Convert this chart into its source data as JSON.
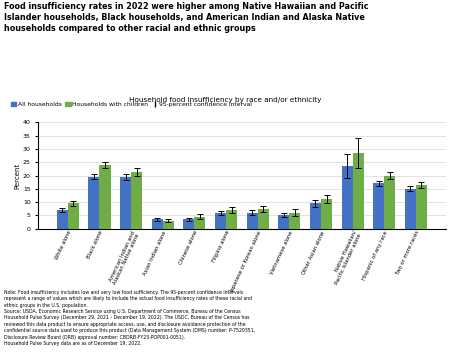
{
  "title_bold": "Food insufficiency rates in 2022 were higher among Native Hawaiian and Pacific\nIslander households, Black households, and American Indian and Alaska Native\nhouseholds compared to other racial and ethnic groups",
  "subtitle": "Household food insufficiency by race and/or ethnicity",
  "ylabel": "Percent",
  "ylim": [
    0,
    40
  ],
  "yticks": [
    0,
    5,
    10,
    15,
    20,
    25,
    30,
    35,
    40
  ],
  "categories": [
    "White alone",
    "Black alone",
    "American Indian and\nAlaskan Native alone",
    "Asian Indian alone",
    "Chinese alone",
    "Filipino alone",
    "Japanese or Korean alone",
    "Vietnamese alone",
    "Other Asian alone",
    "Native Hawaiian/\nPacific Islander alone",
    "Hispanic of any race",
    "Two or more races"
  ],
  "all_households": [
    7.0,
    19.5,
    19.5,
    3.5,
    3.5,
    6.0,
    6.0,
    5.0,
    9.5,
    23.5,
    17.0,
    15.0
  ],
  "with_children": [
    9.5,
    24.0,
    21.5,
    3.0,
    4.5,
    7.0,
    7.5,
    6.0,
    11.0,
    28.5,
    20.0,
    16.5
  ],
  "all_err_low": [
    0.8,
    1.0,
    1.2,
    0.5,
    0.6,
    0.8,
    0.9,
    0.8,
    1.2,
    4.5,
    1.0,
    1.0
  ],
  "all_err_high": [
    0.8,
    1.0,
    1.2,
    0.5,
    0.6,
    0.8,
    0.9,
    0.8,
    1.2,
    4.5,
    1.0,
    1.0
  ],
  "child_err_low": [
    0.9,
    1.2,
    1.5,
    0.6,
    1.0,
    1.0,
    1.2,
    1.2,
    1.5,
    5.5,
    1.2,
    1.2
  ],
  "child_err_high": [
    0.9,
    1.2,
    1.5,
    0.6,
    1.0,
    1.0,
    1.2,
    1.2,
    1.5,
    5.5,
    1.2,
    1.2
  ],
  "color_all": "#4472C4",
  "color_children": "#70AD47",
  "bar_width": 0.35,
  "note": "Note: Food insufficiency includes low and very low food sufficiency. The 95-percent confidence intervals\nrepresent a range of values which are likely to include the actual food insufficiency rates of these racial and\nethnic groups in the U.S. population.\nSource: USDA, Economic Research Service using U.S. Department of Commerce, Bureau of the Census\nHousehold Pulse Survey (December 29, 2021 - December 19, 2022). The USDC, Bureau of the Census has\nreviewed this data product to ensure appropriate access, use, and disclosure avoidance protection of the\nconfidential source data used to produce this product (Data Management System (DMS) number: P-7520351,\nDisclosure Review Board (DRB) approval number: CBDRB-FY23-POP001-0051).\nHousehold Pulse Survey data are as of December 19, 2022."
}
